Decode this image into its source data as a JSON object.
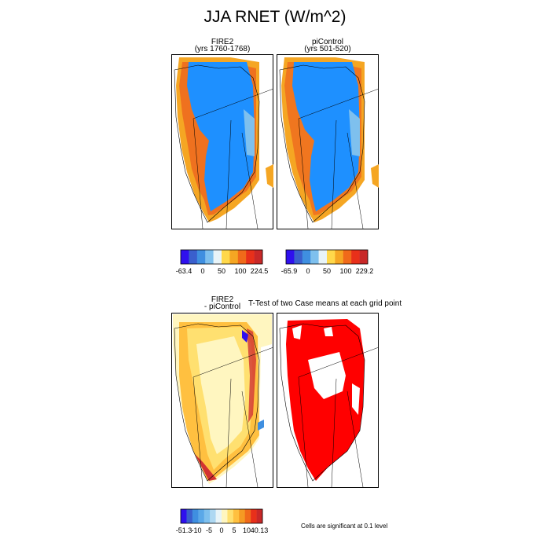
{
  "title": "JJA RNET (W/m^2)",
  "panels": {
    "fire2": {
      "title": "FIRE2",
      "subtitle": "(yrs 1760-1768)"
    },
    "picontrol": {
      "title": "piControl",
      "subtitle": "(yrs 501-520)"
    },
    "diff": {
      "title": "FIRE2",
      "subtitle": "- piControl"
    },
    "ttest": {
      "title": "T-Test of two Case means at each grid point"
    }
  },
  "colorbars": {
    "fire2": {
      "labels": [
        "-63.4",
        "0",
        "50",
        "100",
        "224.5"
      ],
      "colors": [
        "#2f10ee",
        "#3a5fcd",
        "#3f8fe0",
        "#7ec0ee",
        "#e8f4f8",
        "#ffd84a",
        "#f5a623",
        "#f06a1a",
        "#e8301a",
        "#c82828"
      ]
    },
    "picontrol": {
      "labels": [
        "-65.9",
        "0",
        "50",
        "100",
        "229.2"
      ],
      "colors": [
        "#2f10ee",
        "#3a5fcd",
        "#3f8fe0",
        "#7ec0ee",
        "#e8f4f8",
        "#ffd84a",
        "#f5a623",
        "#f06a1a",
        "#e8301a",
        "#c82828"
      ]
    },
    "diff": {
      "labels": [
        "-51.3",
        "-10",
        "-5",
        "0",
        "5",
        "10",
        "40.13"
      ],
      "colors": [
        "#2f10ee",
        "#3a5fcd",
        "#3f8fe0",
        "#5aa8e8",
        "#7ec0ee",
        "#aed8f2",
        "#e8f4f8",
        "#fff6c0",
        "#ffe070",
        "#ffc040",
        "#f59a23",
        "#f06a1a",
        "#e8301a",
        "#c82828"
      ]
    }
  },
  "significance_note": "Cells are significant at 0.1 level",
  "field_colors": {
    "ice_blue": "#1e90ff",
    "edge_light_blue": "#7ec0ee",
    "coast_orange": "#f5a623",
    "coast_red": "#e8301a",
    "diff_pale": "#fff6c0",
    "diff_orange": "#ffc040",
    "diff_red": "#d23232",
    "significant_red": "#ff0000"
  }
}
